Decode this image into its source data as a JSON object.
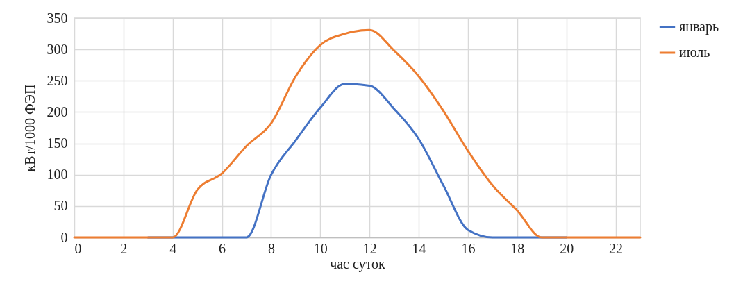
{
  "chart_data": {
    "type": "line",
    "xlabel": "час суток",
    "ylabel": "кВт/1000 ФЭП",
    "x": [
      0,
      1,
      2,
      3,
      4,
      5,
      6,
      7,
      8,
      9,
      10,
      11,
      12,
      13,
      14,
      15,
      16,
      17,
      18,
      19,
      20,
      21,
      22,
      23
    ],
    "series": [
      {
        "name": "январь",
        "color": "#4472c4",
        "values": [
          null,
          null,
          null,
          0,
          0,
          0,
          0,
          0,
          100,
          155,
          207,
          245,
          242,
          205,
          157,
          83,
          12,
          0,
          0,
          0,
          0,
          null,
          null,
          null
        ]
      },
      {
        "name": "июль",
        "color": "#ed7d31",
        "values": [
          0,
          0,
          0,
          0,
          0,
          76,
          102,
          146,
          182,
          257,
          307,
          325,
          331,
          298,
          257,
          202,
          138,
          83,
          43,
          0,
          0,
          0,
          0,
          0
        ]
      }
    ],
    "xlim": [
      0,
      23
    ],
    "xticks": [
      0,
      2,
      4,
      6,
      8,
      10,
      12,
      14,
      16,
      18,
      20,
      22
    ],
    "ylim": [
      0,
      350
    ],
    "yticks": [
      0,
      50,
      100,
      150,
      200,
      250,
      300,
      350
    ],
    "grid": true,
    "legend": "right",
    "marker": "none",
    "line_style": "solid"
  }
}
